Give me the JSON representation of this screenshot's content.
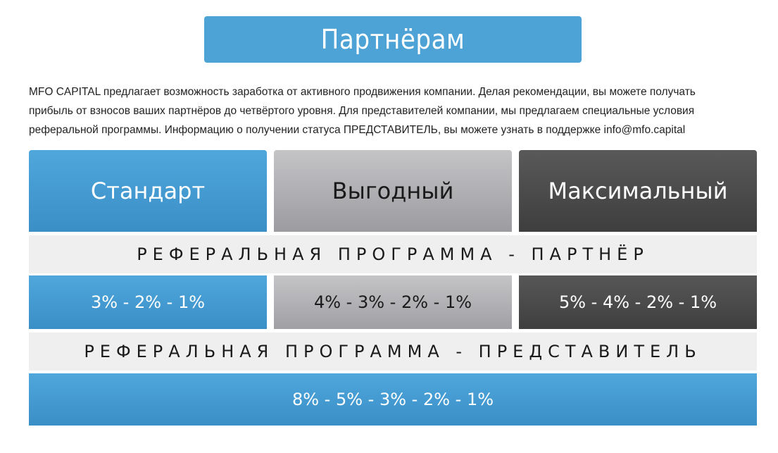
{
  "header": {
    "title": "Партнёрам"
  },
  "intro": {
    "line1": "MFO CAPITAL предлагает возможность заработка от активного продвижения компании. Делая рекомендации, вы можете получать",
    "line2": "прибыль от взносов ваших партнёров до четвёртого уровня. Для представителей компании, мы предлагаем специальные условия",
    "line3": "реферальной программы. Информацию о получении статуса ПРЕДСТАВИТЕЛЬ, вы можете узнать в поддержке info@mfo.capital"
  },
  "plans": [
    {
      "name": "Стандарт",
      "partner_rate": "3% - 2% - 1%"
    },
    {
      "name": "Выгодный",
      "partner_rate": "4% - 3% - 2% - 1%"
    },
    {
      "name": "Максимальный",
      "partner_rate": "5% - 4% - 2% - 1%"
    }
  ],
  "sections": {
    "partner_heading": "РЕФЕРАЛЬНАЯ ПРОГРАММА - ПАРТНЁР",
    "representative_heading": "РЕФЕРАЛЬНАЯ ПРОГРАММА - ПРЕДСТАВИТЕЛЬ",
    "representative_rate": "8% - 5% - 3% - 2% - 1%"
  },
  "colors": {
    "blue": "#4ea3d6",
    "gray": "#b4b4b8",
    "dark": "#4a4a4a",
    "section_bg": "#efefef"
  }
}
